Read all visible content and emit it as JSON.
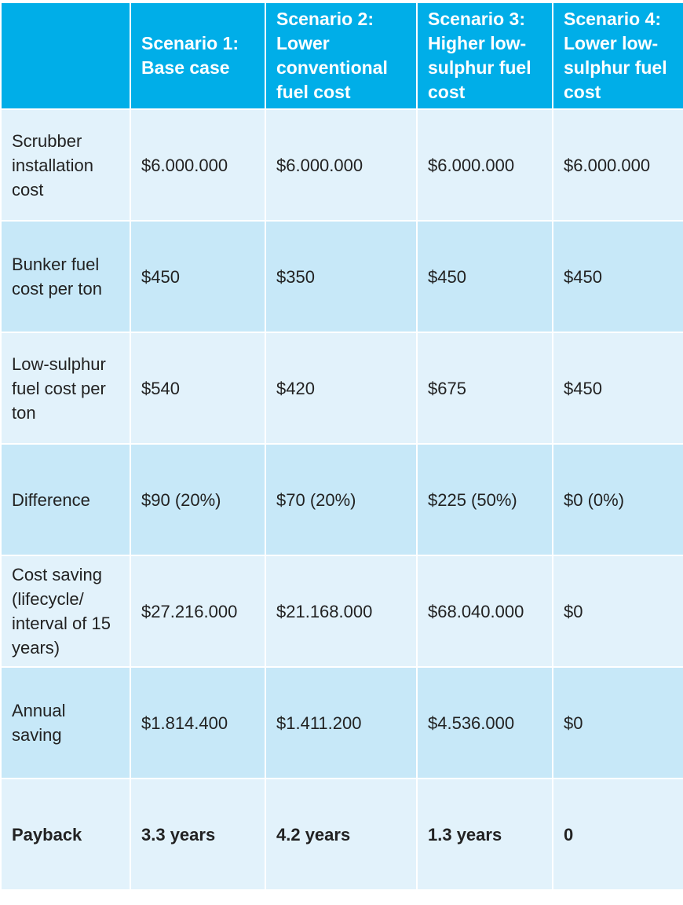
{
  "table": {
    "columns": [
      "Scenario 1: Base case",
      "Scenario 2: Lower conventional fuel cost",
      "Scenario 3: Higher low-sulphur fuel cost",
      "Scenario 4: Lower low-sulphur fuel cost"
    ],
    "rows": [
      {
        "label": "Scrubber installation cost",
        "cells": [
          "$6.000.000",
          "$6.000.000",
          "$6.000.000",
          "$6.000.000"
        ]
      },
      {
        "label": "Bunker fuel cost per ton",
        "cells": [
          "$450",
          "$350",
          "$450",
          "$450"
        ]
      },
      {
        "label": "Low-sulphur fuel cost per ton",
        "cells": [
          "$540",
          "$420",
          "$675",
          "$450"
        ]
      },
      {
        "label": "Difference",
        "cells": [
          "$90 (20%)",
          "$70 (20%)",
          "$225 (50%)",
          "$0 (0%)"
        ]
      },
      {
        "label": "Cost saving (lifecycle/ interval of 15 years)",
        "cells": [
          "$27.216.000",
          "$21.168.000",
          "$68.040.000",
          "$0"
        ]
      },
      {
        "label": "Annual saving",
        "cells": [
          "$1.814.400",
          "$1.411.200",
          "$4.536.000",
          "$0"
        ]
      },
      {
        "label": "Payback",
        "cells": [
          "3.3 years",
          "4.2 years",
          "1.3 years",
          "0"
        ]
      }
    ]
  }
}
